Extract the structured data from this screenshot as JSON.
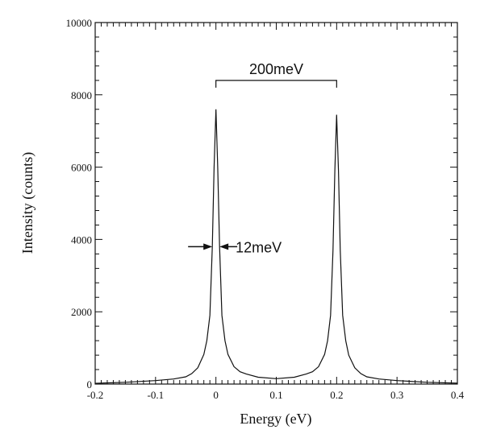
{
  "chart_data": {
    "type": "line",
    "title": "",
    "xlabel": "Energy (eV)",
    "ylabel": "Intensity (counts)",
    "xlim": [
      -0.2,
      0.4
    ],
    "ylim": [
      0,
      10000
    ],
    "xticks": [
      -0.2,
      -0.1,
      0,
      0.1,
      0.2,
      0.3,
      0.4
    ],
    "xtick_labels": [
      "-0.2",
      "-0.1",
      "0",
      "0.1",
      "0.2",
      "0.3",
      "0.4"
    ],
    "yticks": [
      0,
      2000,
      4000,
      6000,
      8000,
      10000
    ],
    "ytick_labels": [
      "0",
      "2000",
      "4000",
      "6000",
      "8000",
      "10000"
    ],
    "grid": false,
    "line_color": "#111111",
    "series": [
      {
        "x": [
          -0.2,
          -0.15,
          -0.1,
          -0.07,
          -0.05,
          -0.04,
          -0.03,
          -0.02,
          -0.015,
          -0.01,
          -0.006,
          -0.003,
          0,
          0.003,
          0.006,
          0.01,
          0.015,
          0.02,
          0.03,
          0.04,
          0.05,
          0.07,
          0.1,
          0.13,
          0.15,
          0.16,
          0.17,
          0.18,
          0.185,
          0.19,
          0.194,
          0.197,
          0.2,
          0.203,
          0.206,
          0.21,
          0.215,
          0.22,
          0.23,
          0.24,
          0.25,
          0.27,
          0.3,
          0.35,
          0.4
        ],
        "y": [
          20,
          50,
          95,
          140,
          200,
          290,
          450,
          820,
          1200,
          1900,
          3800,
          6000,
          7600,
          6000,
          3800,
          1900,
          1200,
          820,
          480,
          340,
          280,
          190,
          150,
          190,
          280,
          340,
          480,
          820,
          1200,
          1900,
          3700,
          5900,
          7450,
          5900,
          3700,
          1900,
          1200,
          800,
          450,
          290,
          200,
          140,
          95,
          50,
          25
        ]
      }
    ],
    "annotations": {
      "separation": {
        "label": "200meV",
        "x_from": 0,
        "x_to": 0.2,
        "y": 8400
      },
      "width": {
        "label": "12meV",
        "x_left": -0.006,
        "x_right": 0.006,
        "y": 3800
      }
    }
  }
}
